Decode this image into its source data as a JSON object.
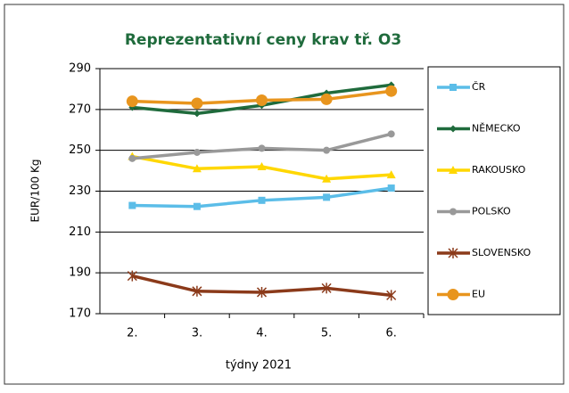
{
  "chart_data": {
    "type": "line",
    "title": "Reprezentativní ceny krav tř. O3",
    "x_label": "týdny 2021",
    "y_label": "EUR/100 Kg",
    "categories": [
      "2.",
      "3.",
      "4.",
      "5.",
      "6."
    ],
    "ylim": [
      170,
      290
    ],
    "yticks": [
      170,
      190,
      210,
      230,
      250,
      270,
      290
    ],
    "grid": true,
    "legend": "right",
    "series": [
      {
        "name": "ČR",
        "color": "#5bbde8",
        "marker": "square",
        "values": [
          223,
          222.5,
          225.5,
          227,
          231.5
        ]
      },
      {
        "name": "NĚMECKO",
        "color": "#1f6b3c",
        "marker": "diamond",
        "values": [
          271,
          268,
          272,
          278,
          282
        ]
      },
      {
        "name": "RAKOUSKO",
        "color": "#ffd700",
        "marker": "triangle",
        "values": [
          247,
          241,
          242,
          236,
          238
        ]
      },
      {
        "name": "POLSKO",
        "color": "#999999",
        "marker": "circle",
        "values": [
          246,
          249,
          251,
          250,
          258
        ]
      },
      {
        "name": "SLOVENSKO",
        "color": "#8b3a1a",
        "marker": "star",
        "values": [
          188.5,
          181,
          180.5,
          182.5,
          179
        ]
      },
      {
        "name": "EU",
        "color": "#e8951e",
        "marker": "bigcircle",
        "values": [
          274,
          273,
          274.5,
          275,
          279
        ]
      }
    ]
  }
}
